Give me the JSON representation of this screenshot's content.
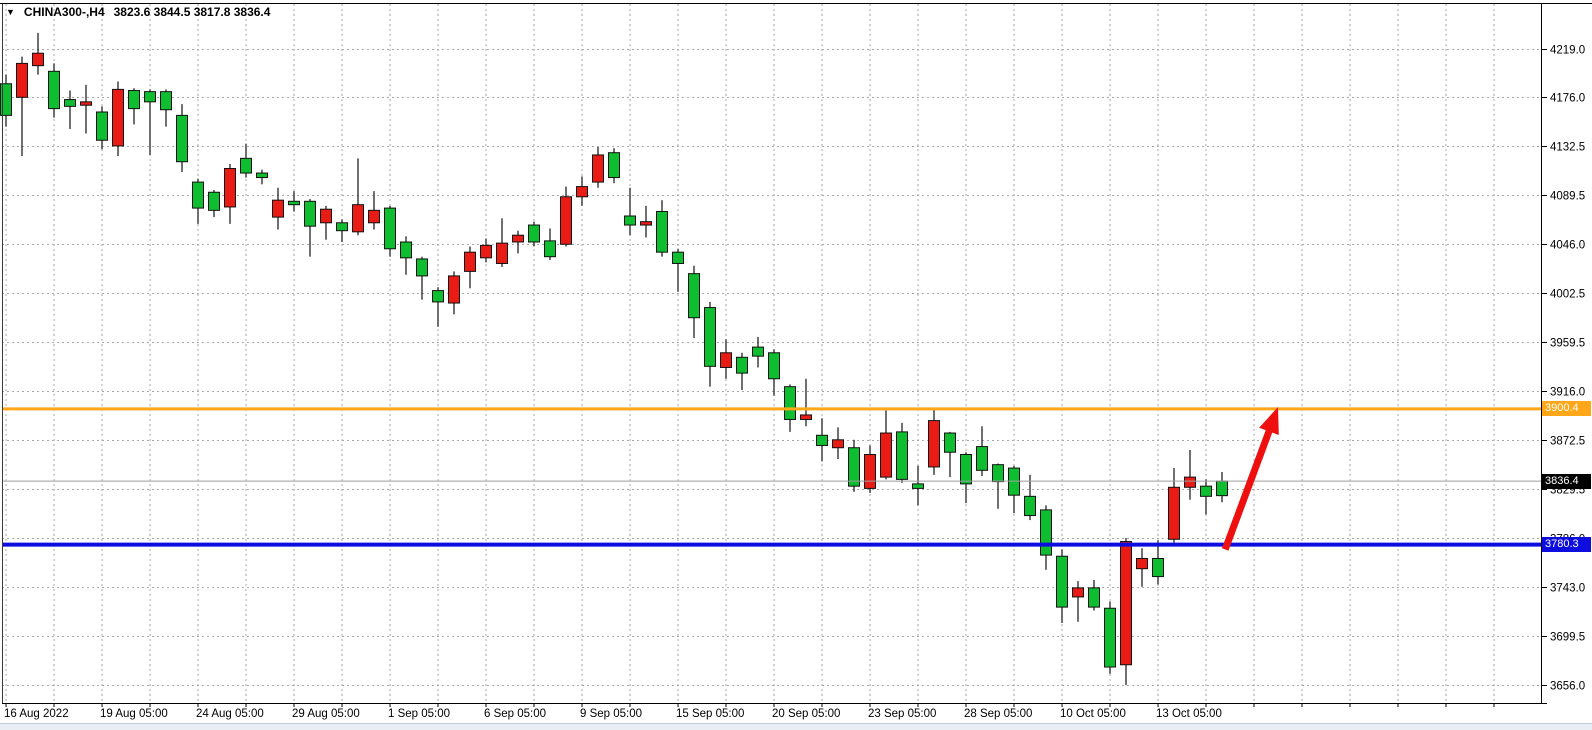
{
  "chart_window": {
    "dropdown_icon": "▼",
    "title_symbol": "CHINA300-,H4",
    "title_ohlc": "3823.6 3844.5 3817.8 3836.4"
  },
  "chart_data": {
    "type": "candlestick",
    "title": "CHINA300-,H4",
    "symbol": "CHINA300-",
    "timeframe": "H4",
    "grid": true,
    "legend_position": "none",
    "last_candle_ohlc": {
      "open": 3823.6,
      "high": 3844.5,
      "low": 3817.8,
      "close": 3836.4
    },
    "y_axis": {
      "side": "right",
      "min": 3656.0,
      "max": 4219.0,
      "tick_labels": [
        "4219.0",
        "4176.0",
        "4132.5",
        "4089.5",
        "4046.0",
        "4002.5",
        "3959.5",
        "3916.0",
        "3872.5",
        "3829.5",
        "3786.0",
        "3743.0",
        "3699.5",
        "3656.0"
      ]
    },
    "x_axis": {
      "tick_labels": [
        "16 Aug 2022",
        "19 Aug 05:00",
        "24 Aug 05:00",
        "29 Aug 05:00",
        "1 Sep 05:00",
        "6 Sep 05:00",
        "9 Sep 05:00",
        "15 Sep 05:00",
        "20 Sep 05:00",
        "23 Sep 05:00",
        "28 Sep 05:00",
        "10 Oct 05:00",
        "13 Oct 05:00"
      ],
      "tick_candle_indices": [
        0,
        6,
        12,
        18,
        24,
        30,
        36,
        42,
        48,
        54,
        60,
        66,
        72
      ],
      "gridline_every_n_candles": 3
    },
    "series_ohlc": [
      [
        4160,
        4196,
        4150,
        4188
      ],
      [
        4206,
        4212,
        4124,
        4176
      ],
      [
        4215,
        4233,
        4196,
        4204
      ],
      [
        4166,
        4206,
        4158,
        4199
      ],
      [
        4168,
        4182,
        4148,
        4174
      ],
      [
        4172,
        4187,
        4144,
        4169
      ],
      [
        4138,
        4168,
        4130,
        4163
      ],
      [
        4183,
        4190,
        4124,
        4133
      ],
      [
        4166,
        4184,
        4152,
        4182
      ],
      [
        4172,
        4183,
        4125,
        4181
      ],
      [
        4165,
        4183,
        4150,
        4181
      ],
      [
        4119,
        4170,
        4110,
        4160
      ],
      [
        4078,
        4104,
        4064,
        4101
      ],
      [
        4076,
        4094,
        4070,
        4092
      ],
      [
        4113,
        4117,
        4064,
        4079
      ],
      [
        4109,
        4135,
        4105,
        4122
      ],
      [
        4105,
        4112,
        4099,
        4109
      ],
      [
        4085,
        4096,
        4059,
        4070
      ],
      [
        4081,
        4093,
        4075,
        4084
      ],
      [
        4062,
        4086,
        4035,
        4084
      ],
      [
        4077,
        4080,
        4050,
        4065
      ],
      [
        4058,
        4068,
        4048,
        4065
      ],
      [
        4081,
        4122,
        4054,
        4057
      ],
      [
        4076,
        4093,
        4059,
        4065
      ],
      [
        4042,
        4080,
        4035,
        4078
      ],
      [
        4034,
        4053,
        4019,
        4048
      ],
      [
        4018,
        4035,
        3997,
        4033
      ],
      [
        3995,
        4008,
        3973,
        4005
      ],
      [
        4018,
        4022,
        3984,
        3994
      ],
      [
        4039,
        4044,
        4007,
        4022
      ],
      [
        4045,
        4051,
        4030,
        4034
      ],
      [
        4047,
        4069,
        4026,
        4029
      ],
      [
        4054,
        4058,
        4038,
        4048
      ],
      [
        4048,
        4066,
        4044,
        4063
      ],
      [
        4035,
        4060,
        4032,
        4049
      ],
      [
        4088,
        4097,
        4044,
        4046
      ],
      [
        4097,
        4106,
        4080,
        4088
      ],
      [
        4125,
        4132,
        4096,
        4101
      ],
      [
        4105,
        4131,
        4100,
        4127
      ],
      [
        4063,
        4096,
        4054,
        4071
      ],
      [
        4066,
        4080,
        4052,
        4063
      ],
      [
        4039,
        4085,
        4035,
        4075
      ],
      [
        4029,
        4042,
        4004,
        4039
      ],
      [
        3981,
        4027,
        3963,
        4020
      ],
      [
        3938,
        3995,
        3920,
        3990
      ],
      [
        3950,
        3962,
        3927,
        3937
      ],
      [
        3932,
        3950,
        3917,
        3946
      ],
      [
        3947,
        3964,
        3937,
        3955
      ],
      [
        3927,
        3953,
        3912,
        3950
      ],
      [
        3891,
        3922,
        3880,
        3920
      ],
      [
        3895,
        3927,
        3885,
        3891
      ],
      [
        3868,
        3892,
        3854,
        3877
      ],
      [
        3873,
        3884,
        3856,
        3866
      ],
      [
        3832,
        3873,
        3827,
        3866
      ],
      [
        3860,
        3868,
        3826,
        3830
      ],
      [
        3879,
        3899,
        3838,
        3840
      ],
      [
        3838,
        3888,
        3835,
        3880
      ],
      [
        3830,
        3850,
        3815,
        3834
      ],
      [
        3890,
        3900,
        3842,
        3849
      ],
      [
        3862,
        3880,
        3840,
        3879
      ],
      [
        3834,
        3862,
        3817,
        3860
      ],
      [
        3846,
        3885,
        3841,
        3867
      ],
      [
        3836,
        3852,
        3812,
        3851
      ],
      [
        3824,
        3850,
        3808,
        3848
      ],
      [
        3806,
        3842,
        3802,
        3823
      ],
      [
        3771,
        3815,
        3758,
        3811
      ],
      [
        3725,
        3776,
        3711,
        3770
      ],
      [
        3742,
        3748,
        3712,
        3734
      ],
      [
        3725,
        3749,
        3722,
        3742
      ],
      [
        3672,
        3730,
        3666,
        3724
      ],
      [
        3783,
        3786,
        3656,
        3674
      ],
      [
        3768,
        3777,
        3743,
        3759
      ],
      [
        3752,
        3784,
        3745,
        3768
      ],
      [
        3831,
        3848,
        3782,
        3785
      ],
      [
        3840,
        3864,
        3820,
        3831
      ],
      [
        3823,
        3838,
        3807,
        3832
      ],
      [
        3823.6,
        3844.5,
        3817.8,
        3836.4
      ]
    ],
    "horizontal_lines": [
      {
        "name": "resistance-line",
        "price": 3900.4,
        "color": "#ffa718",
        "thickness": 3,
        "badge_text": "3900.4"
      },
      {
        "name": "support-line",
        "price": 3780.3,
        "color": "#0d0de0",
        "thickness": 4,
        "badge_text": "3780.3"
      },
      {
        "name": "bid-price-line",
        "price": 3836.4,
        "color": "#9e9e9e",
        "thickness": 1,
        "badge_text": "3836.4",
        "badge_color": "#000000"
      }
    ],
    "arrow_annotation": {
      "from": {
        "x_index": 76.2,
        "price": 3776
      },
      "to": {
        "x_index": 79.5,
        "price": 3902
      },
      "color": "#ed100f"
    },
    "colors": {
      "up": "#0fbe30",
      "down": "#e81b15",
      "outline": "#111111",
      "grid": "#a8a8a8",
      "background": "#ffffff",
      "axis_text": "#000000"
    }
  }
}
